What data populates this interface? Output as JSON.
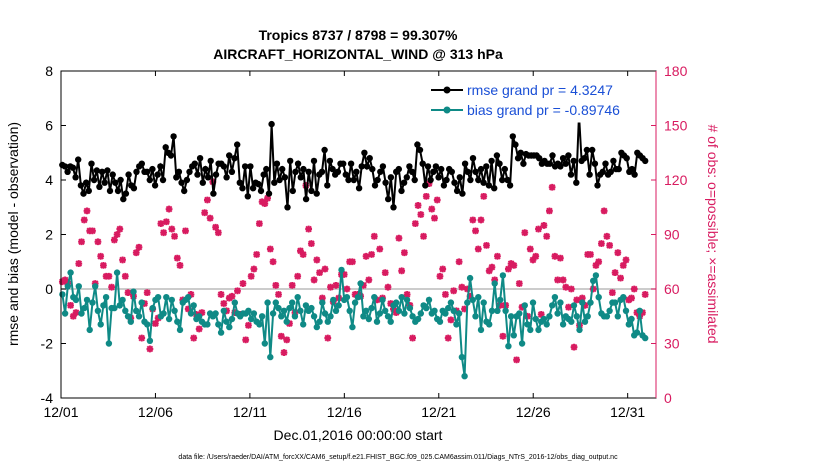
{
  "chart_data": {
    "type": "line",
    "title": "Tropics 8737 / 8798 = 99.307%",
    "subtitle": "AIRCRAFT_HORIZONTAL_WIND @ 313 hPa",
    "xlabel": "Dec.01,2016 00:00:00 start",
    "ylabel_left": "rmse and bias (model - observation)",
    "ylabel_right": "# of obs: o=possible; ×=assimilated",
    "footnote": "data file: /Users/raeder/DAI/ATM_forcXX/CAM6_setup/f.e21.FHIST_BGC.f09_025.CAM6assim.011/Diags_NTrS_2016-12/obs_diag_output.nc",
    "xlim": [
      0,
      31.5
    ],
    "ylim_left": [
      -4,
      8
    ],
    "ylim_right": [
      0,
      180
    ],
    "xticks": [
      0,
      5,
      10,
      15,
      20,
      25,
      30
    ],
    "xtick_labels": [
      "12/01",
      "12/06",
      "12/11",
      "12/16",
      "12/21",
      "12/26",
      "12/31"
    ],
    "yticks_left": [
      -4,
      -2,
      0,
      2,
      4,
      6,
      8
    ],
    "ytick_left_labels": [
      "-4",
      "-2",
      "0",
      "2",
      "4",
      "6",
      "8"
    ],
    "yticks_right": [
      0,
      30,
      60,
      90,
      120,
      150,
      180
    ],
    "ytick_right_labels": [
      "0",
      "30",
      "60",
      "90",
      "120",
      "150",
      "180"
    ],
    "legend_position": "top-right",
    "colors": {
      "rmse": "#000000",
      "bias": "#0f8a86",
      "obs": "#d81b60",
      "legend_text": "#1a4fd6",
      "zero_line": "#bbbbbb"
    },
    "series": [
      {
        "name": "rmse grand pr = 4.3247",
        "axis": "left",
        "values": [
          4.55,
          4.5,
          4.3,
          4.5,
          4.45,
          4.1,
          4.75,
          3.8,
          3.5,
          3.9,
          3.6,
          4.6,
          4.0,
          4.35,
          3.75,
          4.3,
          3.9,
          4.35,
          3.6,
          4.2,
          3.9,
          3.6,
          4.0,
          3.3,
          3.5,
          4.2,
          3.8,
          3.7,
          4.3,
          4.5,
          4.6,
          4.3,
          4.3,
          4.0,
          4.4,
          3.8,
          4.2,
          4.5,
          4.0,
          5.2,
          5.0,
          4.9,
          5.6,
          4.1,
          4.3,
          3.9,
          3.6,
          4.0,
          4.3,
          4.5,
          4.6,
          4.2,
          4.8,
          3.9,
          4.4,
          4.1,
          4.7,
          3.5,
          4.2,
          4.6,
          4.6,
          4.5,
          4.1,
          4.9,
          4.3,
          4.8,
          5.3,
          3.9,
          3.7,
          4.5,
          3.4,
          4.5,
          3.7,
          3.9,
          3.85,
          3.6,
          4.2,
          4.4,
          3.5,
          6.05,
          3.9,
          4.6,
          4.0,
          4.4,
          4.1,
          3.0,
          4.7,
          3.6,
          4.3,
          4.6,
          4.1,
          4.4,
          3.3,
          4.3,
          3.6,
          4.7,
          3.5,
          4.2,
          4.3,
          5.1,
          3.8,
          4.7,
          4.4,
          4.2,
          4.3,
          4.6,
          4.6,
          4.2,
          4.0,
          4.6,
          4.0,
          4.3,
          3.7,
          4.5,
          5.0,
          4.5,
          4.8,
          4.4,
          3.8,
          4.0,
          4.3,
          4.5,
          3.9,
          3.3,
          4.1,
          3.0,
          4.3,
          4.4,
          3.6,
          3.9,
          4.1,
          4.5,
          4.3,
          4.0,
          5.3,
          5.1,
          4.6,
          3.8,
          4.5,
          4.0,
          4.3,
          4.5,
          4.1,
          4.4,
          3.8,
          4.0,
          4.4,
          4.3,
          3.9,
          3.6,
          4.1,
          3.5,
          4.6,
          4.3,
          4.0,
          4.8,
          4.3,
          4.0,
          4.4,
          3.9,
          4.5,
          3.8,
          4.7,
          3.7,
          4.9,
          4.6,
          4.0,
          4.4,
          4.0,
          3.8,
          5.6,
          5.3,
          4.8,
          5.0,
          4.6,
          4.95,
          4.9,
          4.9,
          4.9,
          4.9,
          4.8,
          4.6,
          4.7,
          4.6,
          4.6,
          4.9,
          4.5,
          4.6,
          4.5,
          4.8,
          4.6,
          4.9,
          4.2,
          4.7,
          3.9,
          6.4,
          4.7,
          4.8,
          5.1,
          4.2,
          5.1,
          4.6,
          3.8,
          4.2,
          4.3,
          4.6,
          4.2,
          4.3,
          4.7,
          4.4,
          4.4,
          5.0,
          4.9,
          4.8,
          4.3,
          4.4,
          4.2,
          5.0,
          4.9,
          4.8,
          4.7
        ]
      },
      {
        "name": "bias grand pr = -0.89746",
        "axis": "left",
        "values": [
          -0.2,
          -0.9,
          0.1,
          0.6,
          -0.3,
          -0.4,
          0.1,
          -0.9,
          -0.7,
          -0.4,
          -1.5,
          -0.5,
          0.1,
          -0.8,
          -1.3,
          -0.6,
          -0.3,
          -2.0,
          -0.7,
          -0.7,
          0.6,
          -0.6,
          -0.4,
          -0.8,
          -1.0,
          -1.2,
          -0.1,
          -0.8,
          -1.0,
          -0.5,
          -1.2,
          -1.3,
          -1.9,
          -0.7,
          -0.4,
          -0.3,
          -1.0,
          -0.9,
          -0.3,
          -1.1,
          -0.4,
          -0.8,
          -1.2,
          -1.5,
          -0.5,
          -0.4,
          -0.3,
          -0.9,
          -0.6,
          -1.1,
          -1.0,
          -1.2,
          -1.3,
          -1.3,
          -0.9,
          -1.0,
          -0.9,
          -1.3,
          -1.6,
          -0.8,
          -1.2,
          -1.4,
          -1.1,
          -0.5,
          -0.9,
          -1.0,
          -0.9,
          -0.9,
          -0.8,
          -1.1,
          -0.9,
          -1.2,
          -1.3,
          -1.0,
          -2.0,
          -0.5,
          -2.5,
          -0.9,
          -0.5,
          -0.7,
          -1.0,
          -0.8,
          -1.2,
          -0.7,
          -0.5,
          -1.0,
          -0.3,
          -0.8,
          -1.3,
          -0.6,
          -0.8,
          -0.7,
          -1.0,
          -1.4,
          -1.2,
          -0.5,
          -0.9,
          -1.2,
          -1.0,
          -0.4,
          -0.8,
          -0.6,
          0.7,
          -0.4,
          -0.3,
          -0.8,
          -1.4,
          -0.5,
          -0.3,
          0.2,
          -1.0,
          -0.8,
          -1.1,
          -0.7,
          -0.3,
          -1.2,
          -0.9,
          -0.4,
          -0.8,
          -1.0,
          -1.2,
          -0.6,
          -0.5,
          -0.8,
          -0.3,
          -0.9,
          -0.4,
          -0.7,
          -1.0,
          -1.2,
          -1.1,
          -0.9,
          -0.6,
          -0.7,
          -0.4,
          -0.9,
          -0.8,
          -1.1,
          -1.2,
          -0.8,
          -0.9,
          -0.7,
          -0.5,
          -0.8,
          -1.3,
          -0.9,
          -2.5,
          -3.2,
          -0.5,
          0.4,
          -0.4,
          -1.0,
          -0.3,
          -1.5,
          -0.5,
          -1.2,
          -1.3,
          -0.8,
          0.2,
          -0.8,
          -0.4,
          0.5,
          -0.8,
          -2.1,
          -1.0,
          -1.7,
          -1.0,
          -0.9,
          -2.0,
          -0.6,
          -1.3,
          -1.5,
          -0.5,
          -1.1,
          -1.5,
          -1.2,
          -1.1,
          -1.3,
          -1.0,
          -0.6,
          -0.3,
          -0.9,
          -0.5,
          -1.3,
          -1.0,
          -1.1,
          -1.2,
          -0.6,
          -1.0,
          -1.5,
          -0.5,
          -1.2,
          -1.0,
          -0.5,
          0.3,
          0.5,
          -0.3,
          -0.9,
          -1.0,
          -1.0,
          -0.8,
          -0.5,
          -0.5,
          -1.0,
          -0.4,
          -0.3,
          -0.8,
          -1.3,
          -1.1,
          -1.7,
          -1.6,
          -0.8,
          -1.7,
          -1.8
        ]
      }
    ],
    "obs_assimilated": [
      64,
      65,
      63,
      51,
      45,
      47,
      74,
      86,
      98,
      103,
      92,
      92,
      63,
      86,
      78,
      73,
      67,
      67,
      61,
      87,
      90,
      93,
      76,
      67,
      58,
      44,
      56,
      80,
      83,
      33,
      52,
      58,
      27,
      49,
      41,
      44,
      96,
      91,
      97,
      104,
      93,
      89,
      77,
      73,
      54,
      92,
      49,
      57,
      33,
      46,
      38,
      47,
      102,
      109,
      99,
      119,
      94,
      91,
      57,
      52,
      48,
      55,
      56,
      47,
      59,
      46,
      63,
      32,
      40,
      67,
      71,
      79,
      96,
      108,
      107,
      110,
      82,
      75,
      62,
      57,
      34,
      25,
      32,
      41,
      62,
      47,
      67,
      81,
      79,
      117,
      93,
      85,
      65,
      76,
      69,
      55,
      71,
      33,
      61,
      53,
      62,
      55,
      68,
      68,
      60,
      75,
      75,
      57,
      57,
      56,
      62,
      78,
      65,
      79,
      89,
      54,
      82,
      55,
      69,
      61,
      52,
      49,
      47,
      88,
      70,
      80,
      57,
      51,
      33,
      96,
      106,
      101,
      89,
      111,
      118,
      104,
      99,
      109,
      67,
      71,
      57,
      33,
      43,
      59,
      48,
      75,
      61,
      49,
      60,
      56,
      98,
      92,
      82,
      98,
      111,
      84,
      70,
      72,
      65,
      78,
      51,
      34,
      51,
      71,
      74,
      73,
      21,
      63,
      50,
      91,
      45,
      82,
      76,
      78,
      93,
      46,
      95,
      89,
      103,
      116,
      78,
      65,
      77,
      65,
      61,
      50,
      60,
      28,
      54,
      40,
      55,
      51,
      79,
      79,
      60,
      73,
      75,
      85,
      103,
      89,
      84,
      58,
      69,
      80,
      66,
      73,
      76,
      54,
      55,
      60,
      47,
      45,
      47,
      57
    ]
  }
}
